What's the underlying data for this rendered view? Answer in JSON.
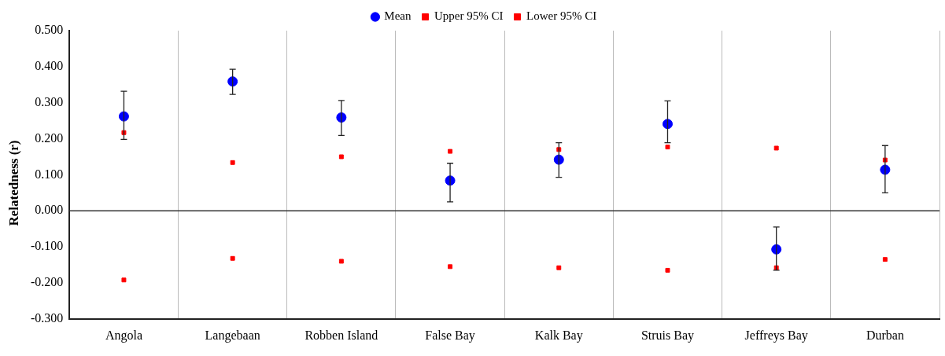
{
  "chart_data": {
    "type": "scatter",
    "ylabel": "Relatedness (r)",
    "categories": [
      "Angola",
      "Langebaan",
      "Robben Island",
      "False Bay",
      "Kalk Bay",
      "Struis Bay",
      "Jeffreys Bay",
      "Durban"
    ],
    "series": [
      {
        "name": "Mean",
        "color": "#0000ff",
        "marker": "circle",
        "values": [
          0.262,
          0.359,
          0.259,
          0.084,
          0.142,
          0.241,
          -0.107,
          0.114
        ],
        "errors": [
          [
            0.198,
            0.332
          ],
          [
            0.323,
            0.393
          ],
          [
            0.209,
            0.306
          ],
          [
            0.025,
            0.132
          ],
          [
            0.093,
            0.189
          ],
          [
            0.189,
            0.305
          ],
          [
            -0.165,
            -0.045
          ],
          [
            0.05,
            0.181
          ]
        ]
      },
      {
        "name": "Upper 95% CI",
        "color": "#ff0000",
        "marker": "square",
        "values": [
          0.217,
          0.134,
          0.15,
          0.165,
          0.17,
          0.177,
          0.174,
          0.141
        ]
      },
      {
        "name": "Lower 95% CI",
        "color": "#ff0000",
        "marker": "square",
        "values": [
          -0.192,
          -0.132,
          -0.14,
          -0.155,
          -0.158,
          -0.165,
          -0.158,
          -0.135
        ]
      }
    ],
    "ylim": [
      -0.3,
      0.5
    ],
    "yticks": [
      {
        "value": -0.3,
        "label": "-0.300"
      },
      {
        "value": -0.2,
        "label": "-0.200"
      },
      {
        "value": -0.1,
        "label": "-0.100"
      },
      {
        "value": 0,
        "label": "0.000"
      },
      {
        "value": 0.1,
        "label": "0.100"
      },
      {
        "value": 0.2,
        "label": "0.200"
      },
      {
        "value": 0.3,
        "label": "0.300"
      },
      {
        "value": 0.4,
        "label": "0.400"
      },
      {
        "value": 0.5,
        "label": "0.500"
      }
    ],
    "ref_lines": [
      {
        "axis": "y",
        "value": 0,
        "color": "#333333"
      }
    ],
    "grid": "x",
    "legend": "top"
  }
}
